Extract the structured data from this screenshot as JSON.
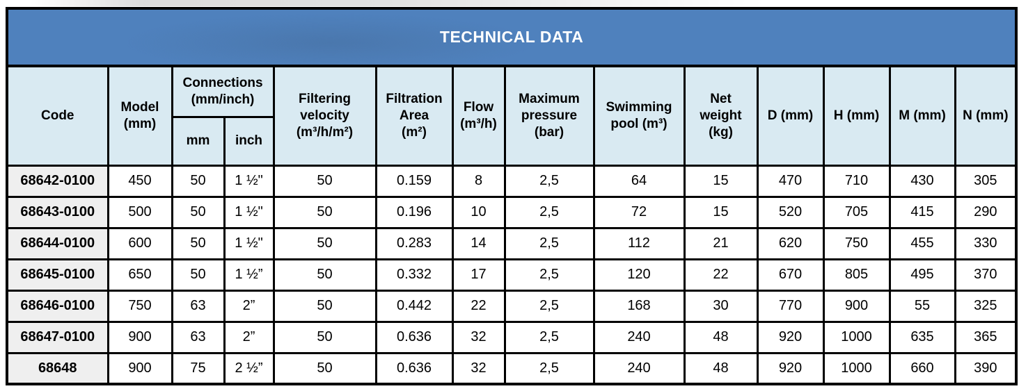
{
  "title": "TECHNICAL DATA",
  "colors": {
    "title_bg": "#4f81bd",
    "title_text": "#ffffff",
    "header_bg": "#d9eaf2",
    "code_column_bg": "#efefef",
    "border": "#000000"
  },
  "table": {
    "column_keys": [
      "code",
      "model",
      "mm",
      "inch",
      "velocity",
      "area",
      "flow",
      "pressure",
      "pool",
      "weight",
      "d",
      "h",
      "m",
      "n"
    ],
    "header": {
      "code": "Code",
      "model": "Model\n(mm)",
      "connections": "Connections\n(mm/inch)",
      "conn_mm": "mm",
      "conn_inch": "inch",
      "velocity": "Filtering\nvelocity\n(m³/h/m²)",
      "area": "Filtration\nArea\n(m²)",
      "flow": "Flow\n(m³/h)",
      "pressure": "Maximum\npressure\n(bar)",
      "pool": "Swimming\npool (m³)",
      "weight": "Net\nweight\n(kg)",
      "d": "D (mm)",
      "h": "H (mm)",
      "m": "M (mm)",
      "n": "N (mm)"
    },
    "rows": [
      {
        "code": "68642-0100",
        "model": "450",
        "mm": "50",
        "inch": "1 ½\"",
        "velocity": "50",
        "area": "0.159",
        "flow": "8",
        "pressure": "2,5",
        "pool": "64",
        "weight": "15",
        "d": "470",
        "h": "710",
        "m": "430",
        "n": "305"
      },
      {
        "code": "68643-0100",
        "model": "500",
        "mm": "50",
        "inch": "1 ½\"",
        "velocity": "50",
        "area": "0.196",
        "flow": "10",
        "pressure": "2,5",
        "pool": "72",
        "weight": "15",
        "d": "520",
        "h": "705",
        "m": "415",
        "n": "290"
      },
      {
        "code": "68644-0100",
        "model": "600",
        "mm": "50",
        "inch": "1 ½\"",
        "velocity": "50",
        "area": "0.283",
        "flow": "14",
        "pressure": "2,5",
        "pool": "112",
        "weight": "21",
        "d": "620",
        "h": "750",
        "m": "455",
        "n": "330"
      },
      {
        "code": "68645-0100",
        "model": "650",
        "mm": "50",
        "inch": "1 ½”",
        "velocity": "50",
        "area": "0.332",
        "flow": "17",
        "pressure": "2,5",
        "pool": "120",
        "weight": "22",
        "d": "670",
        "h": "805",
        "m": "495",
        "n": "370"
      },
      {
        "code": "68646-0100",
        "model": "750",
        "mm": "63",
        "inch": "2”",
        "velocity": "50",
        "area": "0.442",
        "flow": "22",
        "pressure": "2,5",
        "pool": "168",
        "weight": "30",
        "d": "770",
        "h": "900",
        "m": "55",
        "n": "325"
      },
      {
        "code": "68647-0100",
        "model": "900",
        "mm": "63",
        "inch": "2”",
        "velocity": "50",
        "area": "0.636",
        "flow": "32",
        "pressure": "2,5",
        "pool": "240",
        "weight": "48",
        "d": "920",
        "h": "1000",
        "m": "635",
        "n": "365"
      },
      {
        "code": "68648",
        "model": "900",
        "mm": "75",
        "inch": "2 ½”",
        "velocity": "50",
        "area": "0.636",
        "flow": "32",
        "pressure": "2,5",
        "pool": "240",
        "weight": "48",
        "d": "920",
        "h": "1000",
        "m": "660",
        "n": "390"
      }
    ]
  }
}
